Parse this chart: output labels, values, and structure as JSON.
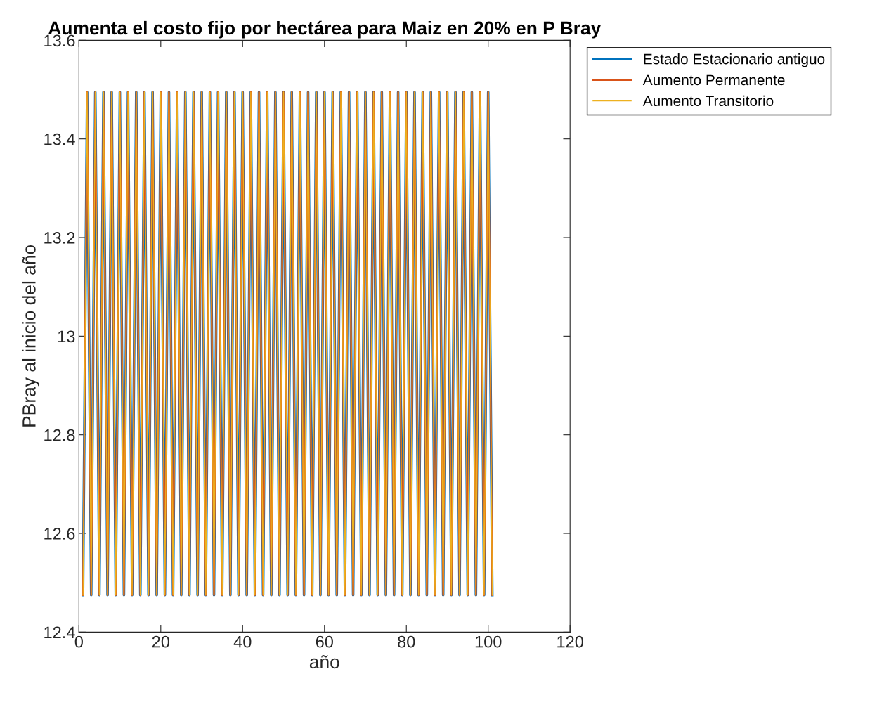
{
  "chart_data": {
    "type": "line",
    "title": "Aumenta el costo fijo por hectárea para Maiz en 20% en P Bray",
    "xlabel": "año",
    "ylabel": "PBray al inicio del año",
    "x": [
      1,
      2,
      3,
      4,
      5,
      6,
      7,
      8,
      9,
      10,
      11,
      12,
      13,
      14,
      15,
      16,
      17,
      18,
      19,
      20,
      21,
      22,
      23,
      24,
      25,
      26,
      27,
      28,
      29,
      30,
      31,
      32,
      33,
      34,
      35,
      36,
      37,
      38,
      39,
      40,
      41,
      42,
      43,
      44,
      45,
      46,
      47,
      48,
      49,
      50,
      51,
      52,
      53,
      54,
      55,
      56,
      57,
      58,
      59,
      60,
      61,
      62,
      63,
      64,
      65,
      66,
      67,
      68,
      69,
      70,
      71,
      72,
      73,
      74,
      75,
      76,
      77,
      78,
      79,
      80,
      81,
      82,
      83,
      84,
      85,
      86,
      87,
      88,
      89,
      90,
      91,
      92,
      93,
      94,
      95,
      96,
      97,
      98,
      99,
      100,
      101
    ],
    "series": [
      {
        "name": "Estado Estacionario antiguo",
        "color": "#0072bd",
        "values": [
          12.475,
          13.495,
          12.475,
          13.495,
          12.475,
          13.495,
          12.475,
          13.495,
          12.475,
          13.495,
          12.475,
          13.495,
          12.475,
          13.495,
          12.475,
          13.495,
          12.475,
          13.495,
          12.475,
          13.495,
          12.475,
          13.495,
          12.475,
          13.495,
          12.475,
          13.495,
          12.475,
          13.495,
          12.475,
          13.495,
          12.475,
          13.495,
          12.475,
          13.495,
          12.475,
          13.495,
          12.475,
          13.495,
          12.475,
          13.495,
          12.475,
          13.495,
          12.475,
          13.495,
          12.475,
          13.495,
          12.475,
          13.495,
          12.475,
          13.495,
          12.475,
          13.495,
          12.475,
          13.495,
          12.475,
          13.495,
          12.475,
          13.495,
          12.475,
          13.495,
          12.475,
          13.495,
          12.475,
          13.495,
          12.475,
          13.495,
          12.475,
          13.495,
          12.475,
          13.495,
          12.475,
          13.495,
          12.475,
          13.495,
          12.475,
          13.495,
          12.475,
          13.495,
          12.475,
          13.495,
          12.475,
          13.495,
          12.475,
          13.495,
          12.475,
          13.495,
          12.475,
          13.495,
          12.475,
          13.495,
          12.475,
          13.495,
          12.475,
          13.495,
          12.475,
          13.495,
          12.475,
          13.495,
          12.475,
          13.495,
          12.475
        ]
      },
      {
        "name": "Aumento Permanente",
        "color": "#d95319",
        "values": [
          12.475,
          13.495,
          12.475,
          13.495,
          12.475,
          13.495,
          12.475,
          13.495,
          12.475,
          13.495,
          12.475,
          13.495,
          12.475,
          13.495,
          12.475,
          13.495,
          12.475,
          13.495,
          12.475,
          13.495,
          12.475,
          13.495,
          12.475,
          13.495,
          12.475,
          13.495,
          12.475,
          13.495,
          12.475,
          13.495,
          12.475,
          13.495,
          12.475,
          13.495,
          12.475,
          13.495,
          12.475,
          13.495,
          12.475,
          13.495,
          12.475,
          13.495,
          12.475,
          13.495,
          12.475,
          13.495,
          12.475,
          13.495,
          12.475,
          13.495,
          12.475,
          13.495,
          12.475,
          13.495,
          12.475,
          13.495,
          12.475,
          13.495,
          12.475,
          13.495,
          12.475,
          13.495,
          12.475,
          13.495,
          12.475,
          13.495,
          12.475,
          13.495,
          12.475,
          13.495,
          12.475,
          13.495,
          12.475,
          13.495,
          12.475,
          13.495,
          12.475,
          13.495,
          12.475,
          13.495,
          12.475,
          13.495,
          12.475,
          13.495,
          12.475,
          13.495,
          12.475,
          13.495,
          12.475,
          13.495,
          12.475,
          13.495,
          12.475,
          13.495,
          12.475,
          13.495,
          12.475,
          13.495,
          12.475,
          13.495,
          12.475
        ]
      },
      {
        "name": "Aumento Transitorio",
        "color": "#edb120",
        "values": [
          12.475,
          13.495,
          12.475,
          13.495,
          12.475,
          13.495,
          12.475,
          13.495,
          12.475,
          13.495,
          12.475,
          13.495,
          12.475,
          13.495,
          12.475,
          13.495,
          12.475,
          13.495,
          12.475,
          13.495,
          12.475,
          13.495,
          12.475,
          13.495,
          12.475,
          13.495,
          12.475,
          13.495,
          12.475,
          13.495,
          12.475,
          13.495,
          12.475,
          13.495,
          12.475,
          13.495,
          12.475,
          13.495,
          12.475,
          13.495,
          12.475,
          13.495,
          12.475,
          13.495,
          12.475,
          13.495,
          12.475,
          13.495,
          12.475,
          13.495,
          12.475,
          13.495,
          12.475,
          13.495,
          12.475,
          13.495,
          12.475,
          13.495,
          12.475,
          13.495,
          12.475,
          13.495,
          12.475,
          13.495,
          12.475,
          13.495,
          12.475,
          13.495,
          12.475,
          13.495,
          12.475,
          13.495,
          12.475,
          13.495,
          12.475,
          13.495,
          12.475,
          13.495,
          12.475,
          13.495,
          12.475,
          13.495,
          12.475,
          13.495,
          12.475,
          13.495,
          12.475,
          13.495,
          12.475,
          13.495,
          12.475,
          13.495,
          12.475,
          13.495,
          12.475,
          13.495,
          12.475,
          13.495,
          12.475,
          13.495,
          12.475
        ]
      }
    ],
    "xlim": [
      0,
      120
    ],
    "xticks": [
      0,
      20,
      40,
      60,
      80,
      100,
      120
    ],
    "ylim": [
      12.4,
      13.6
    ],
    "yticks": [
      12.4,
      12.6,
      12.8,
      13,
      13.2,
      13.4,
      13.6
    ],
    "grid": false,
    "legend": "right",
    "marker": "none",
    "line_style": "solid"
  }
}
